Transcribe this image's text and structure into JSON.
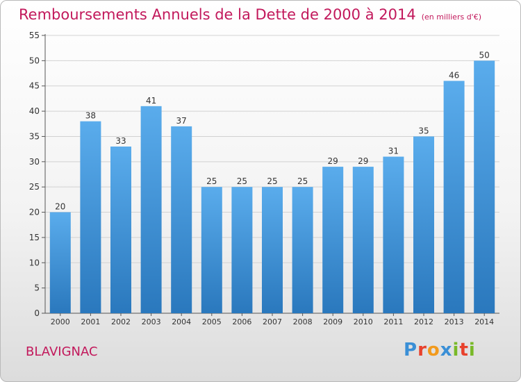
{
  "header": {
    "title": "Remboursements Annuels de la Dette de 2000 à 2014",
    "unit": "(en milliers d'€)"
  },
  "footer": {
    "commune": "BLAVIGNAC",
    "brand_letters": [
      "P",
      "r",
      "o",
      "x",
      "i",
      "t",
      "i"
    ],
    "brand_colors": [
      "#3a8fd6",
      "#e8412c",
      "#f29a1c",
      "#3a8fd6",
      "#79b928",
      "#e8412c",
      "#79b928"
    ]
  },
  "colors": {
    "bar_top": "#5aacec",
    "bar_bottom": "#2a78bd",
    "title": "#c2185b",
    "grid": "#d2d2d2"
  },
  "chart_data": {
    "type": "bar",
    "title": "Remboursements Annuels de la Dette de 2000 à 2014",
    "subtitle": "(en milliers d'€)",
    "categories": [
      "2000",
      "2001",
      "2002",
      "2003",
      "2004",
      "2005",
      "2006",
      "2007",
      "2008",
      "2009",
      "2010",
      "2011",
      "2012",
      "2013",
      "2014"
    ],
    "values": [
      20,
      38,
      33,
      41,
      37,
      25,
      25,
      25,
      25,
      29,
      29,
      31,
      35,
      46,
      50
    ],
    "ylim": [
      0,
      55
    ],
    "yticks": [
      0,
      5,
      10,
      15,
      20,
      25,
      30,
      35,
      40,
      45,
      50,
      55
    ],
    "grid": true,
    "xlabel": "",
    "ylabel": ""
  }
}
